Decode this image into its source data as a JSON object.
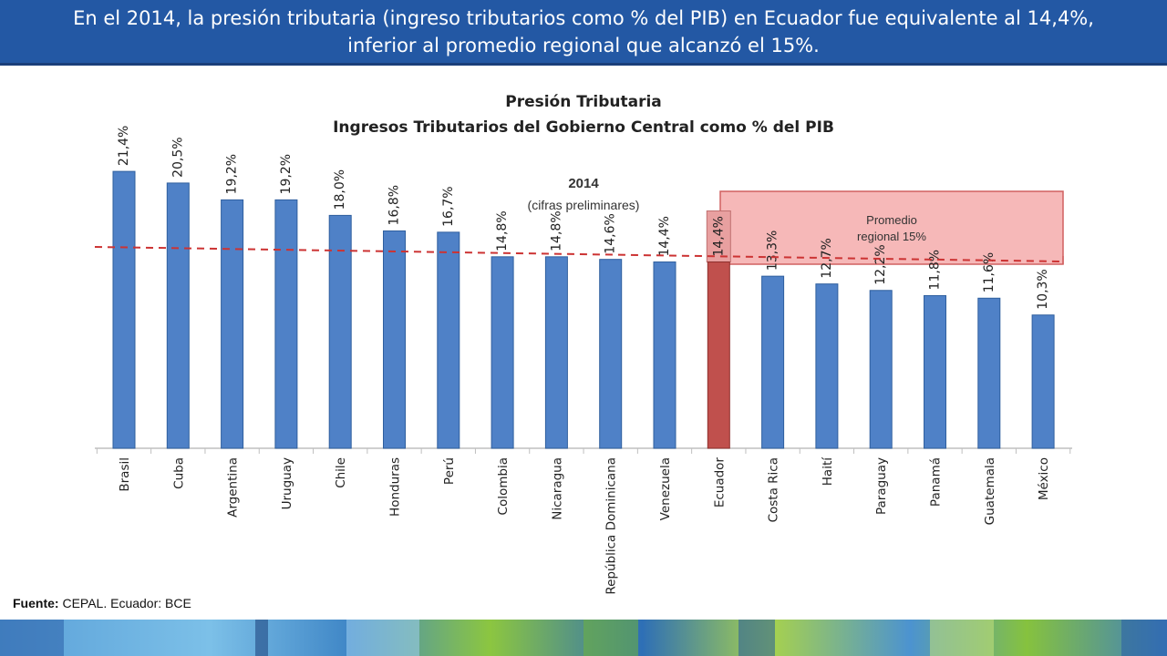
{
  "header": {
    "line1": "En el 2014, la presión tributaria (ingreso tributarios como % del PIB) en Ecuador fue equivalente al 14,4%,",
    "line2": "inferior al promedio regional que alcanzó el 15%."
  },
  "source": {
    "label": "Fuente:",
    "text": "CEPAL. Ecuador: BCE"
  },
  "chart_data": {
    "type": "bar",
    "title": "Presión Tributaria",
    "subtitle": "Ingresos Tributarios del Gobierno Central como % del PIB",
    "annotation_year": "2014",
    "annotation_note": "(cifras preliminares)",
    "reference_line": {
      "label_line1": "Promedio",
      "label_line2": "regional 15%",
      "value": 15
    },
    "categories": [
      "Brasil",
      "Cuba",
      "Argentina",
      "Uruguay",
      "Chile",
      "Honduras",
      "Perú",
      "Colombia",
      "Nicaragua",
      "República Dominicana",
      "Venezuela",
      "Ecuador",
      "Costa Rica",
      "Haití",
      "Paraguay",
      "Panamá",
      "Guatemala",
      "México"
    ],
    "values": [
      21.4,
      20.5,
      19.2,
      19.2,
      18.0,
      16.8,
      16.7,
      14.8,
      14.8,
      14.6,
      14.4,
      14.4,
      13.3,
      12.7,
      12.2,
      11.8,
      11.6,
      10.3
    ],
    "data_labels": [
      "21,4%",
      "20,5%",
      "19,2%",
      "19,2%",
      "18,0%",
      "16,8%",
      "16,7%",
      "14,8%",
      "14,8%",
      "14,6%",
      "14,4%",
      "14,4%",
      "13,3%",
      "12,7%",
      "12,2%",
      "11,8%",
      "11,6%",
      "10,3%"
    ],
    "highlight": "Ecuador",
    "colors": {
      "bar": "#4f81c7",
      "bar_edge": "#2f5f9e",
      "highlight": "#c0504d",
      "highlight_edge": "#8e2f2c",
      "reference": "#cc3333",
      "callout_fill": "#f6b8b8",
      "callout_edge": "#d06060"
    },
    "ylim": [
      0,
      24
    ],
    "grid": false
  }
}
